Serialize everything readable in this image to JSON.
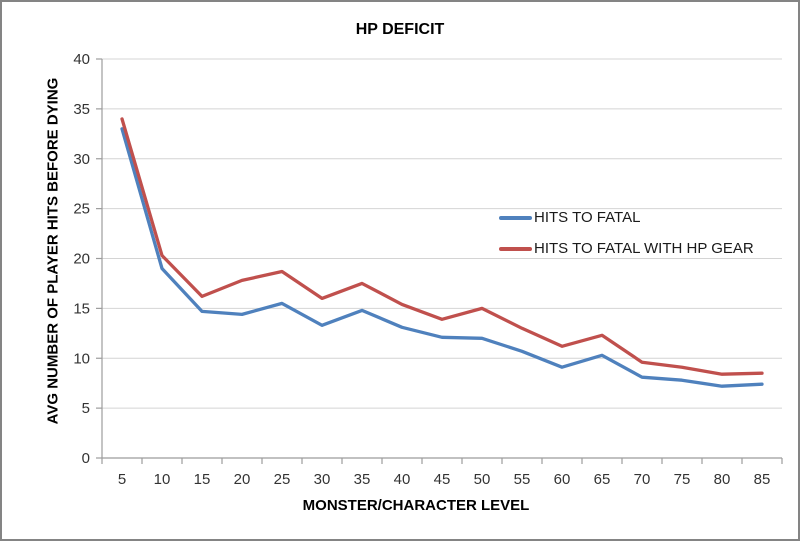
{
  "chart_data": {
    "type": "line",
    "title": "HP DEFICIT",
    "xlabel": "MONSTER/CHARACTER LEVEL",
    "ylabel": "AVG NUMBER OF PLAYER HITS BEFORE DYING",
    "x": [
      5,
      10,
      15,
      20,
      25,
      30,
      35,
      40,
      45,
      50,
      55,
      60,
      65,
      70,
      75,
      80,
      85
    ],
    "series": [
      {
        "name": "HITS TO FATAL",
        "color": "#4F81BD",
        "values": [
          33,
          19,
          14.7,
          14.4,
          15.5,
          13.3,
          14.8,
          13.1,
          12.1,
          12,
          10.7,
          9.1,
          10.3,
          8.1,
          7.8,
          7.2,
          7.4
        ]
      },
      {
        "name": "HITS TO FATAL WITH HP GEAR",
        "color": "#C0504D",
        "values": [
          34,
          20.3,
          16.2,
          17.8,
          18.7,
          16,
          17.5,
          15.4,
          13.9,
          15,
          13,
          11.2,
          12.3,
          9.6,
          9.1,
          8.4,
          8.5
        ]
      }
    ],
    "ylim": [
      0,
      40
    ],
    "ytick_step": 5,
    "grid": true,
    "legend_position": "center-right-overlay"
  },
  "colors": {
    "gridline": "#D4D4D4",
    "axis": "#9C9C9C",
    "tick_label": "#333333",
    "frame_border": "#848484",
    "background": "#FFFFFF"
  }
}
